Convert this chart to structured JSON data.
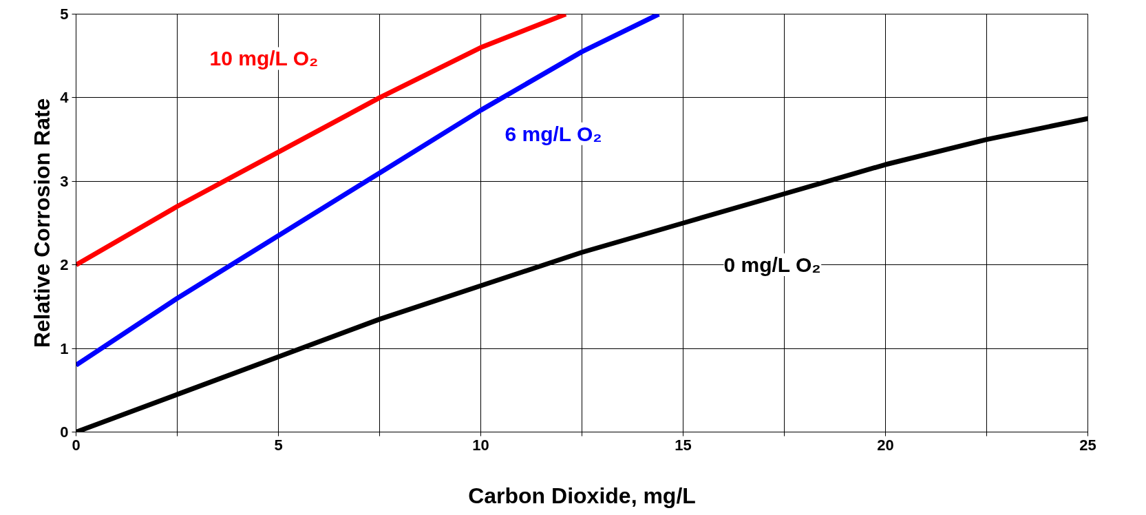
{
  "chart_data": {
    "type": "line",
    "xlabel": "Carbon Dioxide, mg/L",
    "ylabel": "Relative Corrosion Rate",
    "xlim": [
      0,
      25
    ],
    "ylim": [
      0,
      5
    ],
    "xticks": [
      0,
      {
        "value": 2.5,
        "label": null
      },
      5,
      {
        "value": 7.5,
        "label": null
      },
      10,
      {
        "value": 12.5,
        "label": null
      },
      15,
      {
        "value": 17.5,
        "label": null
      },
      20,
      {
        "value": 22.5,
        "label": null
      },
      25
    ],
    "yticks": [
      0,
      1,
      2,
      3,
      4,
      5
    ],
    "grid": true,
    "marker": "none",
    "line_style": "solid",
    "series": [
      {
        "name": "10 mg/L O₂",
        "color": "#ff0000",
        "x": [
          0,
          2.5,
          5,
          7.5,
          10,
          12.1
        ],
        "values": [
          2.0,
          2.7,
          3.35,
          4.0,
          4.6,
          5.0
        ]
      },
      {
        "name": "6 mg/L O₂",
        "color": "#0000ff",
        "x": [
          0,
          2.5,
          5,
          7.5,
          10,
          12.5,
          14.4
        ],
        "values": [
          0.8,
          1.6,
          2.35,
          3.1,
          3.85,
          4.55,
          5.0
        ]
      },
      {
        "name": "0 mg/L O₂",
        "color": "#000000",
        "x": [
          0,
          2.5,
          5,
          7.5,
          10,
          12.5,
          15,
          17.5,
          20,
          22.5,
          25
        ],
        "values": [
          0,
          0.45,
          0.9,
          1.35,
          1.75,
          2.15,
          2.5,
          2.85,
          3.2,
          3.5,
          3.75
        ]
      }
    ]
  }
}
